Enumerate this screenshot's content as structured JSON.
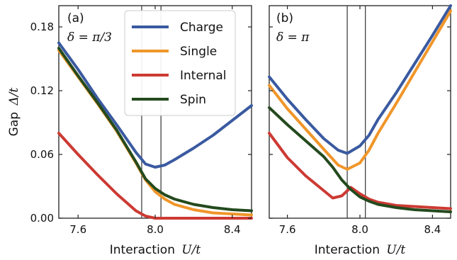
{
  "chart_data": {
    "type": "line",
    "ylabel_text": "Gap",
    "ylabel_math": "Δ/t",
    "xlabel_text": "Interaction",
    "xlabel_math": "U/t",
    "ylim": [
      0,
      0.2
    ],
    "xlim": [
      7.5,
      8.5
    ],
    "xticks": [
      "7.6",
      "8.0",
      "8.4"
    ],
    "yticks": [
      "0.00",
      "0.06",
      "0.12",
      "0.18"
    ],
    "legend": {
      "placement": "upper-right of panel (a)",
      "entries": [
        "Charge",
        "Single",
        "Internal",
        "Spin"
      ]
    },
    "colors": {
      "Charge": "#3a5aa0",
      "Single": "#f0962a",
      "Internal": "#cc3a33",
      "Spin": "#244a1e"
    },
    "panels": [
      {
        "label": "(a)",
        "delta": "δ = π/3",
        "vlines": [
          7.93,
          8.03
        ],
        "series": [
          {
            "name": "Charge",
            "x": [
              7.5,
              7.6,
              7.7,
              7.8,
              7.9,
              7.95,
              8.0,
              8.05,
              8.1,
              8.2,
              8.3,
              8.4,
              8.5
            ],
            "y": [
              0.165,
              0.14,
              0.113,
              0.088,
              0.062,
              0.051,
              0.048,
              0.05,
              0.055,
              0.066,
              0.078,
              0.092,
              0.106
            ]
          },
          {
            "name": "Single",
            "x": [
              7.5,
              7.6,
              7.7,
              7.8,
              7.9,
              7.95,
              8.0,
              8.05,
              8.1,
              8.2,
              8.3,
              8.4,
              8.5
            ],
            "y": [
              0.158,
              0.133,
              0.108,
              0.082,
              0.052,
              0.036,
              0.025,
              0.018,
              0.013,
              0.008,
              0.005,
              0.004,
              0.003
            ]
          },
          {
            "name": "Internal",
            "x": [
              7.5,
              7.6,
              7.7,
              7.8,
              7.9,
              7.95,
              8.0,
              8.05,
              8.1,
              8.2,
              8.3,
              8.4,
              8.5
            ],
            "y": [
              0.08,
              0.06,
              0.041,
              0.023,
              0.007,
              0.002,
              0.0,
              0.0,
              0.0,
              0.0,
              0.0,
              0.0,
              0.0
            ]
          },
          {
            "name": "Spin",
            "x": [
              7.5,
              7.6,
              7.7,
              7.8,
              7.9,
              7.95,
              8.0,
              8.05,
              8.1,
              8.2,
              8.3,
              8.4,
              8.5
            ],
            "y": [
              0.16,
              0.134,
              0.109,
              0.083,
              0.053,
              0.037,
              0.028,
              0.022,
              0.018,
              0.013,
              0.01,
              0.008,
              0.007
            ]
          }
        ]
      },
      {
        "label": "(b)",
        "delta": "δ = π",
        "vlines": [
          7.93,
          8.03
        ],
        "series": [
          {
            "name": "Charge",
            "x": [
              7.5,
              7.6,
              7.7,
              7.8,
              7.88,
              7.93,
              8.0,
              8.05,
              8.1,
              8.2,
              8.3,
              8.4,
              8.5
            ],
            "y": [
              0.133,
              0.112,
              0.093,
              0.075,
              0.064,
              0.061,
              0.068,
              0.078,
              0.093,
              0.118,
              0.145,
              0.172,
              0.2
            ]
          },
          {
            "name": "Single",
            "x": [
              7.5,
              7.6,
              7.7,
              7.8,
              7.88,
              7.93,
              8.0,
              8.05,
              8.1,
              8.2,
              8.3,
              8.4,
              8.5
            ],
            "y": [
              0.125,
              0.103,
              0.084,
              0.065,
              0.05,
              0.046,
              0.052,
              0.064,
              0.08,
              0.108,
              0.137,
              0.166,
              0.195
            ]
          },
          {
            "name": "Internal",
            "x": [
              7.5,
              7.6,
              7.7,
              7.8,
              7.85,
              7.9,
              7.95,
              8.0,
              8.05,
              8.1,
              8.2,
              8.3,
              8.4,
              8.5
            ],
            "y": [
              0.08,
              0.057,
              0.04,
              0.026,
              0.019,
              0.021,
              0.029,
              0.023,
              0.018,
              0.015,
              0.012,
              0.011,
              0.01,
              0.009
            ]
          },
          {
            "name": "Spin",
            "x": [
              7.5,
              7.6,
              7.7,
              7.8,
              7.85,
              7.9,
              7.95,
              8.0,
              8.05,
              8.1,
              8.2,
              8.3,
              8.4,
              8.5
            ],
            "y": [
              0.104,
              0.088,
              0.073,
              0.058,
              0.048,
              0.036,
              0.027,
              0.02,
              0.016,
              0.013,
              0.01,
              0.008,
              0.007,
              0.006
            ]
          }
        ]
      }
    ]
  }
}
